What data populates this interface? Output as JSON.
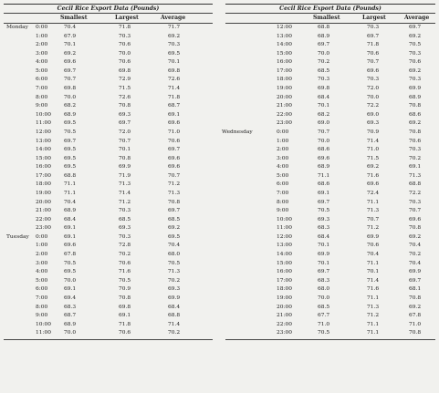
{
  "title": "Cecil Rice Export Data (Pounds)",
  "headers": [
    "Smallest",
    "Largest",
    "Average"
  ],
  "left_rows": [
    [
      "Monday",
      "0:00",
      "70.4",
      "71.8",
      "71.7"
    ],
    [
      "",
      "1:00",
      "67.9",
      "70.3",
      "69.2"
    ],
    [
      "",
      "2:00",
      "70.1",
      "70.6",
      "70.3"
    ],
    [
      "",
      "3:00",
      "69.2",
      "70.0",
      "69.5"
    ],
    [
      "",
      "4:00",
      "69.6",
      "70.6",
      "70.1"
    ],
    [
      "",
      "5:00",
      "69.7",
      "69.8",
      "69.8"
    ],
    [
      "",
      "6:00",
      "70.7",
      "72.9",
      "72.6"
    ],
    [
      "",
      "7:00",
      "69.8",
      "71.5",
      "71.4"
    ],
    [
      "",
      "8:00",
      "70.0",
      "72.6",
      "71.8"
    ],
    [
      "",
      "9:00",
      "68.2",
      "70.8",
      "68.7"
    ],
    [
      "",
      "10:00",
      "68.9",
      "69.3",
      "69.1"
    ],
    [
      "",
      "11:00",
      "69.5",
      "69.7",
      "69.6"
    ],
    [
      "",
      "12:00",
      "70.5",
      "72.0",
      "71.0"
    ],
    [
      "",
      "13:00",
      "69.7",
      "70.7",
      "70.6"
    ],
    [
      "",
      "14:00",
      "69.5",
      "70.1",
      "69.7"
    ],
    [
      "",
      "15:00",
      "69.5",
      "70.8",
      "69.6"
    ],
    [
      "",
      "16:00",
      "69.5",
      "69.9",
      "69.6"
    ],
    [
      "",
      "17:00",
      "68.8",
      "71.9",
      "70.7"
    ],
    [
      "",
      "18:00",
      "71.1",
      "71.3",
      "71.2"
    ],
    [
      "",
      "19:00",
      "71.1",
      "71.4",
      "71.3"
    ],
    [
      "",
      "20:00",
      "70.4",
      "71.2",
      "70.8"
    ],
    [
      "",
      "21:00",
      "68.9",
      "70.3",
      "69.7"
    ],
    [
      "",
      "22:00",
      "68.4",
      "68.5",
      "68.5"
    ],
    [
      "",
      "23:00",
      "69.1",
      "69.3",
      "69.2"
    ],
    [
      "Tuesday",
      "0:00",
      "69.1",
      "70.3",
      "69.5"
    ],
    [
      "",
      "1:00",
      "69.6",
      "72.8",
      "70.4"
    ],
    [
      "",
      "2:00",
      "67.8",
      "70.2",
      "68.0"
    ],
    [
      "",
      "3:00",
      "70.5",
      "70.6",
      "70.5"
    ],
    [
      "",
      "4:00",
      "69.5",
      "71.6",
      "71.3"
    ],
    [
      "",
      "5:00",
      "70.0",
      "70.5",
      "70.2"
    ],
    [
      "",
      "6:00",
      "69.1",
      "70.9",
      "69.3"
    ],
    [
      "",
      "7:00",
      "69.4",
      "70.8",
      "69.9"
    ],
    [
      "",
      "8:00",
      "68.3",
      "69.8",
      "68.4"
    ],
    [
      "",
      "9:00",
      "68.7",
      "69.1",
      "68.8"
    ],
    [
      "",
      "10:00",
      "68.9",
      "71.8",
      "71.4"
    ],
    [
      "",
      "11:00",
      "70.0",
      "70.6",
      "70.2"
    ]
  ],
  "right_rows": [
    [
      "",
      "12:00",
      "68.8",
      "70.3",
      "69.7"
    ],
    [
      "",
      "13:00",
      "68.9",
      "69.7",
      "69.2"
    ],
    [
      "",
      "14:00",
      "69.7",
      "71.8",
      "70.5"
    ],
    [
      "",
      "15:00",
      "70.0",
      "70.6",
      "70.3"
    ],
    [
      "",
      "16:00",
      "70.2",
      "70.7",
      "70.6"
    ],
    [
      "",
      "17:00",
      "68.5",
      "69.6",
      "69.2"
    ],
    [
      "",
      "18:00",
      "70.3",
      "70.3",
      "70.3"
    ],
    [
      "",
      "19:00",
      "69.8",
      "72.0",
      "69.9"
    ],
    [
      "",
      "20:00",
      "68.4",
      "70.0",
      "68.9"
    ],
    [
      "",
      "21:00",
      "70.1",
      "72.2",
      "70.8"
    ],
    [
      "",
      "22:00",
      "68.2",
      "69.0",
      "68.6"
    ],
    [
      "",
      "23:00",
      "69.0",
      "69.3",
      "69.2"
    ],
    [
      "Wednesday",
      "0:00",
      "70.7",
      "70.9",
      "70.8"
    ],
    [
      "",
      "1:00",
      "70.0",
      "71.4",
      "70.6"
    ],
    [
      "",
      "2:00",
      "68.6",
      "71.0",
      "70.3"
    ],
    [
      "",
      "3:00",
      "69.6",
      "71.5",
      "70.2"
    ],
    [
      "",
      "4:00",
      "68.9",
      "69.2",
      "69.1"
    ],
    [
      "",
      "5:00",
      "71.1",
      "71.6",
      "71.3"
    ],
    [
      "",
      "6:00",
      "68.6",
      "69.6",
      "68.8"
    ],
    [
      "",
      "7:00",
      "69.1",
      "72.4",
      "72.2"
    ],
    [
      "",
      "8:00",
      "69.7",
      "71.1",
      "70.3"
    ],
    [
      "",
      "9:00",
      "70.5",
      "71.3",
      "70.7"
    ],
    [
      "",
      "10:00",
      "69.3",
      "70.7",
      "69.6"
    ],
    [
      "",
      "11:00",
      "68.3",
      "71.2",
      "70.8"
    ],
    [
      "",
      "12:00",
      "68.4",
      "69.9",
      "69.2"
    ],
    [
      "",
      "13:00",
      "70.1",
      "70.6",
      "70.4"
    ],
    [
      "",
      "14:00",
      "69.9",
      "70.4",
      "70.2"
    ],
    [
      "",
      "15:00",
      "70.1",
      "71.1",
      "70.4"
    ],
    [
      "",
      "16:00",
      "69.7",
      "70.1",
      "69.9"
    ],
    [
      "",
      "17:00",
      "68.3",
      "71.4",
      "69.7"
    ],
    [
      "",
      "18:00",
      "68.0",
      "71.6",
      "68.1"
    ],
    [
      "",
      "19:00",
      "70.0",
      "71.1",
      "70.8"
    ],
    [
      "",
      "20:00",
      "68.5",
      "71.3",
      "69.2"
    ],
    [
      "",
      "21:00",
      "67.7",
      "71.2",
      "67.8"
    ],
    [
      "",
      "22:00",
      "71.0",
      "71.1",
      "71.0"
    ],
    [
      "",
      "23:00",
      "70.5",
      "71.1",
      "70.8"
    ]
  ]
}
